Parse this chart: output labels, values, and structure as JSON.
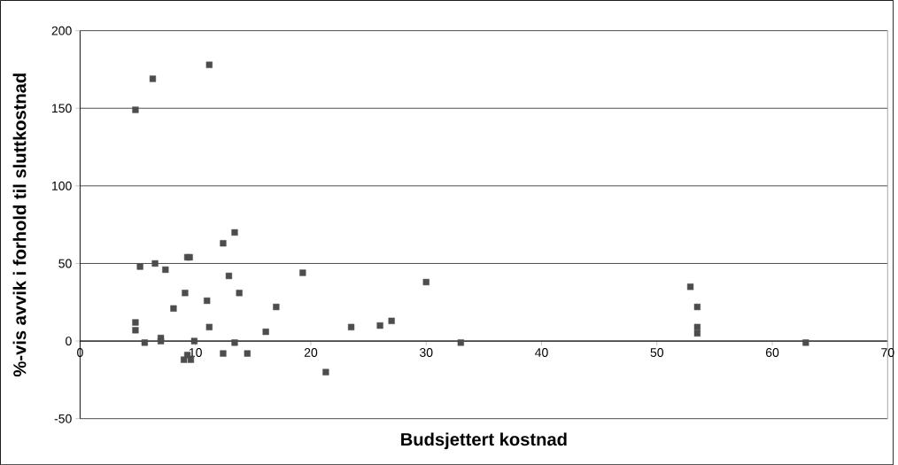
{
  "chart_data": {
    "type": "scatter",
    "xlabel": "Budsjettert kostnad",
    "ylabel": "%-vis avvik i forhold til sluttkostnad",
    "xlim": [
      0,
      70
    ],
    "xticks": [
      0,
      10,
      20,
      30,
      40,
      50,
      60,
      70
    ],
    "ylim": [
      -50,
      200
    ],
    "yticks": [
      -50,
      0,
      50,
      100,
      150,
      200
    ],
    "grid": "y",
    "marker": "square",
    "series": [
      {
        "color": "#4d4d4d",
        "x": [
          4.8,
          6.3,
          11.2,
          4.8,
          4.8,
          5.6,
          5.2,
          6.5,
          7.4,
          7.0,
          7.0,
          8.1,
          9.0,
          9.1,
          9.3,
          9.5,
          9.3,
          9.6,
          9.9,
          11.0,
          11.2,
          12.4,
          12.4,
          12.9,
          13.4,
          13.4,
          13.8,
          14.5,
          16.1,
          17.0,
          19.3,
          21.3,
          23.5,
          26.0,
          27.0,
          30.0,
          33.0,
          52.9,
          53.5,
          53.5,
          53.5,
          62.9
        ],
        "values": [
          149,
          169,
          178,
          12,
          7,
          -1,
          48,
          50,
          46,
          2,
          0,
          21,
          -12,
          31,
          54,
          54,
          -9,
          -12,
          0,
          26,
          9,
          -8,
          63,
          42,
          70,
          -1,
          31,
          -8,
          6,
          22,
          44,
          -20,
          9,
          10,
          13,
          38,
          -1,
          35,
          22,
          9,
          5,
          -1
        ]
      }
    ]
  }
}
